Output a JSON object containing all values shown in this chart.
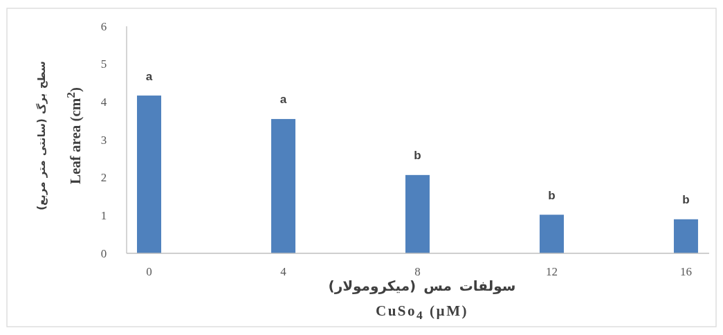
{
  "chart_data": {
    "type": "bar",
    "categories": [
      "0",
      "4",
      "8",
      "12",
      "16"
    ],
    "values": [
      4.17,
      3.55,
      2.07,
      1.02,
      0.9
    ],
    "color": "#4f81bd",
    "ylim": [
      0,
      6
    ],
    "yticks": [
      0,
      1,
      2,
      3,
      4,
      5,
      6
    ],
    "xlabel": [
      "سولفات مس (میکرومولار)",
      "CuSo$_{4}$ (µM)"
    ],
    "ylabel": [
      "سطح برگ (سانتی متر مربع)",
      "Leaf area (cm$^{2}$)"
    ],
    "annotations": [
      "a",
      "a",
      "b",
      "b",
      "b"
    ]
  }
}
